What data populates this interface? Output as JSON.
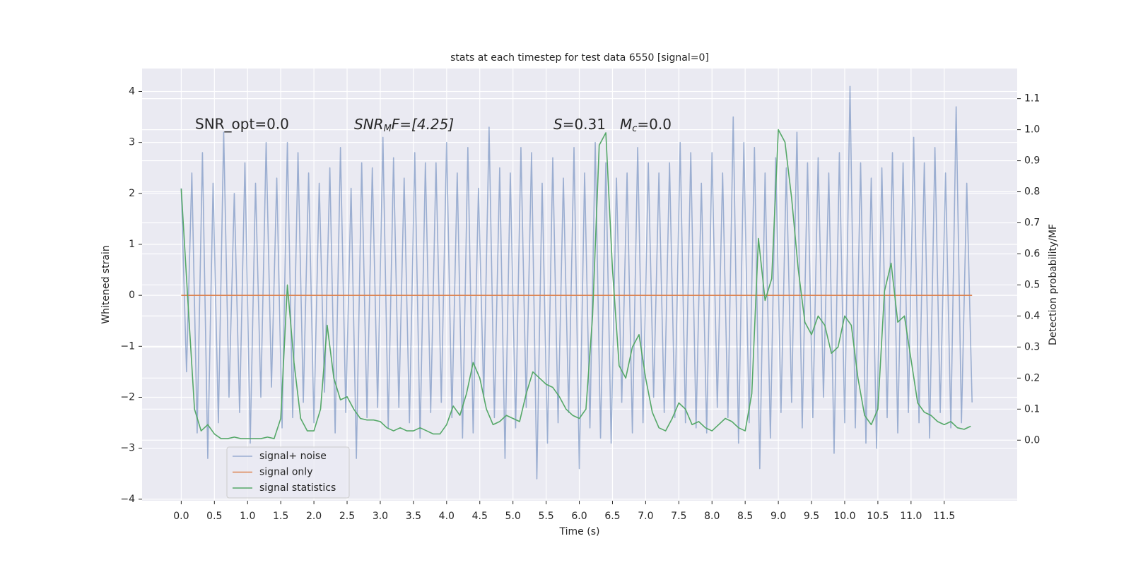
{
  "chart_data": {
    "type": "line",
    "title": "stats at each timestep for test data 6550 [signal=0]",
    "x_label": "Time (s)",
    "y_label": "Whitened strain",
    "y2_label": "Detection probability/MF",
    "annotations": [
      {
        "text": "SNR_opt=0.0"
      },
      {
        "parts": [
          "SNR",
          "M",
          "F=[4.25]"
        ]
      },
      {
        "parts": [
          "S",
          "=0.31"
        ]
      },
      {
        "parts": [
          "M",
          "c",
          "=0.0"
        ]
      }
    ],
    "grid": true,
    "legend": "lower left",
    "xlim": [
      -0.59,
      12.6
    ],
    "ylim": [
      -4.03,
      4.45
    ],
    "y2lim": [
      -0.195,
      1.197
    ],
    "xticks": [
      {
        "value": 0,
        "label": "0.0"
      },
      {
        "value": 0.5,
        "label": "0.5"
      },
      {
        "value": 1,
        "label": "1.0"
      },
      {
        "value": 1.5,
        "label": "1.5"
      },
      {
        "value": 2,
        "label": "2.0"
      },
      {
        "value": 2.5,
        "label": "2.5"
      },
      {
        "value": 3,
        "label": "3.0"
      },
      {
        "value": 3.5,
        "label": "3.5"
      },
      {
        "value": 4,
        "label": "4.0"
      },
      {
        "value": 4.5,
        "label": "4.5"
      },
      {
        "value": 5,
        "label": "5.0"
      },
      {
        "value": 5.5,
        "label": "5.5"
      },
      {
        "value": 6,
        "label": "6.0"
      },
      {
        "value": 6.5,
        "label": "6.5"
      },
      {
        "value": 7,
        "label": "7.0"
      },
      {
        "value": 7.5,
        "label": "7.5"
      },
      {
        "value": 8,
        "label": "8.0"
      },
      {
        "value": 8.5,
        "label": "8.5"
      },
      {
        "value": 9,
        "label": "9.0"
      },
      {
        "value": 9.5,
        "label": "9.5"
      },
      {
        "value": 10,
        "label": "10.0"
      },
      {
        "value": 10.5,
        "label": "10.5"
      },
      {
        "value": 11,
        "label": "11.0"
      },
      {
        "value": 11.5,
        "label": "11.5"
      }
    ],
    "yticks": [
      {
        "value": -4,
        "label": "−4"
      },
      {
        "value": -3,
        "label": "−3"
      },
      {
        "value": -2,
        "label": "−2"
      },
      {
        "value": -1,
        "label": "−1"
      },
      0,
      1,
      2,
      3,
      4
    ],
    "y2ticks": [
      {
        "value": 0,
        "label": "0.0"
      },
      {
        "value": 0.1,
        "label": "0.1"
      },
      {
        "value": 0.2,
        "label": "0.2"
      },
      {
        "value": 0.3,
        "label": "0.3"
      },
      {
        "value": 0.4,
        "label": "0.4"
      },
      {
        "value": 0.5,
        "label": "0.5"
      },
      {
        "value": 0.6,
        "label": "0.6"
      },
      {
        "value": 0.7,
        "label": "0.7"
      },
      {
        "value": 0.8,
        "label": "0.8"
      },
      {
        "value": 0.9,
        "label": "0.9"
      },
      {
        "value": 1,
        "label": "1.0"
      },
      {
        "value": 1.1,
        "label": "1.1"
      }
    ],
    "series": [
      {
        "name": "signal+ noise",
        "color": "#4c72b0",
        "opacity": 0.5,
        "x": [
          0,
          0.08,
          0.16,
          0.24,
          0.32,
          0.4,
          0.48,
          0.56,
          0.64,
          0.72,
          0.8,
          0.88,
          0.96,
          1.04,
          1.12,
          1.2,
          1.28,
          1.36,
          1.44,
          1.52,
          1.6,
          1.68,
          1.76,
          1.84,
          1.92,
          2,
          2.08,
          2.16,
          2.24,
          2.32,
          2.4,
          2.48,
          2.56,
          2.64,
          2.72,
          2.8,
          2.88,
          2.96,
          3.04,
          3.12,
          3.2,
          3.28,
          3.36,
          3.44,
          3.52,
          3.6,
          3.68,
          3.76,
          3.84,
          3.92,
          4,
          4.08,
          4.16,
          4.24,
          4.32,
          4.4,
          4.48,
          4.56,
          4.64,
          4.72,
          4.8,
          4.88,
          4.96,
          5.04,
          5.12,
          5.2,
          5.28,
          5.36,
          5.44,
          5.52,
          5.6,
          5.68,
          5.76,
          5.84,
          5.92,
          6,
          6.08,
          6.16,
          6.24,
          6.32,
          6.4,
          6.48,
          6.56,
          6.64,
          6.72,
          6.8,
          6.88,
          6.96,
          7.04,
          7.12,
          7.2,
          7.28,
          7.36,
          7.44,
          7.52,
          7.6,
          7.68,
          7.76,
          7.84,
          7.92,
          8,
          8.08,
          8.16,
          8.24,
          8.32,
          8.4,
          8.48,
          8.56,
          8.64,
          8.72,
          8.8,
          8.88,
          8.96,
          9.04,
          9.12,
          9.2,
          9.28,
          9.36,
          9.44,
          9.52,
          9.6,
          9.68,
          9.76,
          9.84,
          9.92,
          10,
          10.08,
          10.16,
          10.24,
          10.32,
          10.4,
          10.48,
          10.56,
          10.64,
          10.72,
          10.8,
          10.88,
          10.96,
          11.04,
          11.12,
          11.2,
          11.28,
          11.36,
          11.44,
          11.52,
          11.6,
          11.68,
          11.76,
          11.84,
          11.92
        ],
        "values": [
          2.1,
          -1.5,
          2.4,
          -2.7,
          2.8,
          -3.2,
          2.2,
          -2.5,
          3.2,
          -2.0,
          2.0,
          -2.3,
          2.6,
          -2.9,
          2.2,
          -2.0,
          3.0,
          -1.8,
          2.3,
          -2.6,
          3.0,
          -2.4,
          2.8,
          -2.1,
          2.4,
          -2.5,
          2.2,
          -1.9,
          2.5,
          -2.7,
          2.9,
          -2.3,
          2.1,
          -3.2,
          2.6,
          -2.4,
          2.5,
          -2.2,
          3.1,
          -2.6,
          2.7,
          -2.2,
          2.3,
          -2.5,
          2.8,
          -2.8,
          2.6,
          -2.3,
          2.6,
          -2.1,
          3.0,
          -2.4,
          2.4,
          -2.8,
          2.9,
          -2.7,
          2.1,
          -2.0,
          3.3,
          -2.4,
          2.5,
          -3.2,
          2.4,
          -2.6,
          2.9,
          -2.2,
          2.8,
          -3.6,
          2.2,
          -2.9,
          2.7,
          -2.5,
          2.3,
          -2.3,
          2.9,
          -3.4,
          2.4,
          -2.6,
          3.0,
          -2.8,
          2.6,
          -2.9,
          2.3,
          -2.1,
          2.4,
          -2.7,
          2.9,
          -2.5,
          2.6,
          -2.0,
          2.4,
          -2.3,
          2.6,
          -2.4,
          3.0,
          -2.5,
          2.8,
          -2.6,
          2.2,
          -2.7,
          2.8,
          -2.2,
          2.4,
          -2.4,
          3.5,
          -2.9,
          3.0,
          -2.5,
          2.9,
          -3.4,
          2.4,
          -2.8,
          2.7,
          -2.3,
          2.5,
          -2.1,
          3.2,
          -2.6,
          2.6,
          -2.4,
          2.7,
          -2.0,
          2.4,
          -3.1,
          2.8,
          -2.5,
          4.1,
          -2.6,
          2.6,
          -2.9,
          2.3,
          -3.0,
          2.5,
          -2.4,
          2.8,
          -2.7,
          2.6,
          -2.3,
          3.1,
          -2.5,
          2.6,
          -2.8,
          2.9,
          -2.3,
          2.4,
          -2.6,
          3.7,
          -2.5,
          2.2,
          -2.1
        ]
      },
      {
        "name": "signal only",
        "color": "#dd8452",
        "x": [
          0,
          11.92
        ],
        "values": [
          0,
          0
        ]
      },
      {
        "name": "signal statistics",
        "color": "#55a868",
        "axis": "y2",
        "x": [
          0,
          0.1,
          0.2,
          0.3,
          0.4,
          0.5,
          0.6,
          0.7,
          0.8,
          0.9,
          1,
          1.1,
          1.2,
          1.3,
          1.4,
          1.5,
          1.6,
          1.7,
          1.8,
          1.9,
          2,
          2.1,
          2.2,
          2.3,
          2.4,
          2.5,
          2.6,
          2.7,
          2.8,
          2.9,
          3,
          3.1,
          3.2,
          3.3,
          3.4,
          3.5,
          3.6,
          3.7,
          3.8,
          3.9,
          4,
          4.1,
          4.2,
          4.3,
          4.4,
          4.5,
          4.6,
          4.7,
          4.8,
          4.9,
          5,
          5.1,
          5.2,
          5.3,
          5.4,
          5.5,
          5.6,
          5.7,
          5.8,
          5.9,
          6,
          6.1,
          6.2,
          6.3,
          6.4,
          6.5,
          6.6,
          6.7,
          6.8,
          6.9,
          7,
          7.1,
          7.2,
          7.3,
          7.4,
          7.5,
          7.6,
          7.7,
          7.8,
          7.9,
          8,
          8.1,
          8.2,
          8.3,
          8.4,
          8.5,
          8.6,
          8.7,
          8.8,
          8.9,
          9,
          9.1,
          9.2,
          9.3,
          9.4,
          9.5,
          9.6,
          9.7,
          9.8,
          9.9,
          10,
          10.1,
          10.2,
          10.3,
          10.4,
          10.5,
          10.6,
          10.7,
          10.8,
          10.9,
          11,
          11.1,
          11.2,
          11.3,
          11.4,
          11.5,
          11.6,
          11.7,
          11.8,
          11.9
        ],
        "values": [
          0.81,
          0.45,
          0.1,
          0.03,
          0.05,
          0.02,
          0.005,
          0.005,
          0.01,
          0.005,
          0.005,
          0.005,
          0.005,
          0.01,
          0.005,
          0.07,
          0.5,
          0.25,
          0.07,
          0.03,
          0.03,
          0.1,
          0.37,
          0.2,
          0.13,
          0.14,
          0.1,
          0.07,
          0.065,
          0.065,
          0.06,
          0.04,
          0.03,
          0.04,
          0.03,
          0.03,
          0.04,
          0.03,
          0.02,
          0.02,
          0.05,
          0.11,
          0.08,
          0.15,
          0.25,
          0.2,
          0.1,
          0.05,
          0.06,
          0.08,
          0.07,
          0.06,
          0.15,
          0.22,
          0.2,
          0.18,
          0.17,
          0.14,
          0.1,
          0.08,
          0.07,
          0.1,
          0.4,
          0.95,
          0.99,
          0.55,
          0.24,
          0.2,
          0.3,
          0.34,
          0.2,
          0.09,
          0.04,
          0.03,
          0.07,
          0.12,
          0.1,
          0.05,
          0.06,
          0.04,
          0.03,
          0.05,
          0.07,
          0.06,
          0.04,
          0.03,
          0.15,
          0.65,
          0.45,
          0.52,
          1.0,
          0.96,
          0.78,
          0.55,
          0.38,
          0.34,
          0.4,
          0.37,
          0.28,
          0.3,
          0.4,
          0.37,
          0.2,
          0.08,
          0.05,
          0.1,
          0.48,
          0.57,
          0.38,
          0.4,
          0.26,
          0.12,
          0.09,
          0.08,
          0.06,
          0.05,
          0.06,
          0.04,
          0.035,
          0.045
        ]
      }
    ]
  }
}
